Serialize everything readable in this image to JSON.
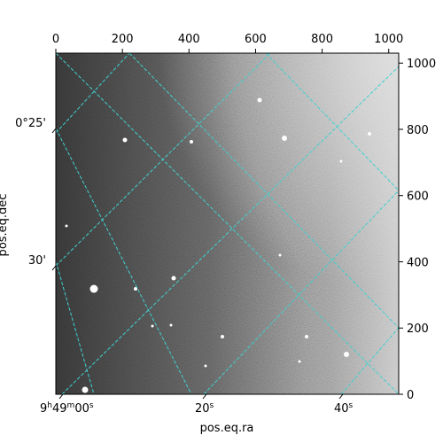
{
  "chart_data": {
    "type": "image",
    "xlabel": "pos.eq.ra",
    "ylabel": "pos.eq.dec",
    "pixel_axes": {
      "x_range": [
        0,
        1030
      ],
      "y_range": [
        0,
        1030
      ],
      "top_ticks": [
        "0",
        "200",
        "400",
        "600",
        "800",
        "1000"
      ],
      "right_ticks": [
        "0",
        "200",
        "400",
        "600",
        "800",
        "1000"
      ]
    },
    "world_ticks": {
      "ra": [
        {
          "h": "9",
          "m": "49",
          "s": "00",
          "sec_label": "00s"
        },
        {
          "sec_label": "20s"
        },
        {
          "sec_label": "40s"
        }
      ],
      "dec": [
        {
          "label": "0°25'"
        },
        {
          "label": "30'"
        }
      ]
    },
    "grid_color": "#40d0d0",
    "cmap": "gray"
  }
}
